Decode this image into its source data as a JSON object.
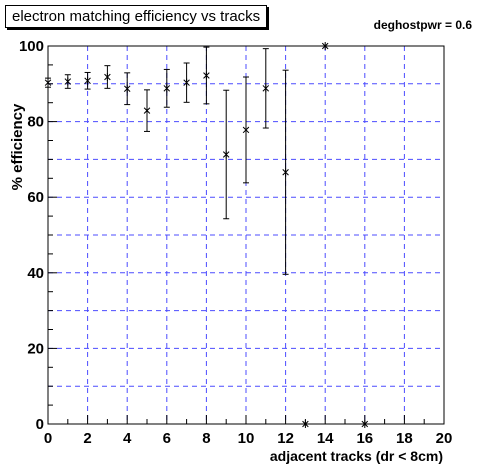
{
  "chart_data": {
    "type": "scatter",
    "title": "electron matching efficiency vs tracks",
    "annotation": "deghostpwr = 0.6",
    "xlabel": "adjacent tracks (dr < 8cm)",
    "ylabel": "% efficiency",
    "xlim": [
      0,
      20
    ],
    "ylim": [
      0,
      100
    ],
    "x_ticks": [
      0,
      2,
      4,
      6,
      8,
      10,
      12,
      14,
      16,
      18,
      20
    ],
    "y_ticks": [
      0,
      20,
      40,
      60,
      80,
      100
    ],
    "grid": true,
    "marker": "asterisk",
    "series": [
      {
        "points": [
          {
            "x": 0,
            "y": 90.3,
            "err": 1.2
          },
          {
            "x": 1,
            "y": 90.6,
            "err": 1.8
          },
          {
            "x": 2,
            "y": 90.8,
            "err": 2.2
          },
          {
            "x": 3,
            "y": 91.8,
            "err": 3.0
          },
          {
            "x": 4,
            "y": 88.7,
            "err": 4.2
          },
          {
            "x": 5,
            "y": 82.9,
            "err": 5.5
          },
          {
            "x": 6,
            "y": 88.8,
            "err": 5.0
          },
          {
            "x": 7,
            "y": 90.3,
            "err": 5.2
          },
          {
            "x": 8,
            "y": 92.2,
            "err": 7.5
          },
          {
            "x": 9,
            "y": 71.3,
            "err": 17.0
          },
          {
            "x": 10,
            "y": 77.8,
            "err": 14.0
          },
          {
            "x": 11,
            "y": 88.8,
            "err": 10.5
          },
          {
            "x": 12,
            "y": 66.6,
            "err": 27.0
          },
          {
            "x": 13,
            "y": 0.0,
            "err": 0
          },
          {
            "x": 14,
            "y": 100.0,
            "err": 0
          },
          {
            "x": 16,
            "y": 0.0,
            "err": 0
          }
        ]
      }
    ]
  },
  "colors": {
    "grid": "#4c4cff",
    "axis": "#000000",
    "marker": "#000000"
  }
}
